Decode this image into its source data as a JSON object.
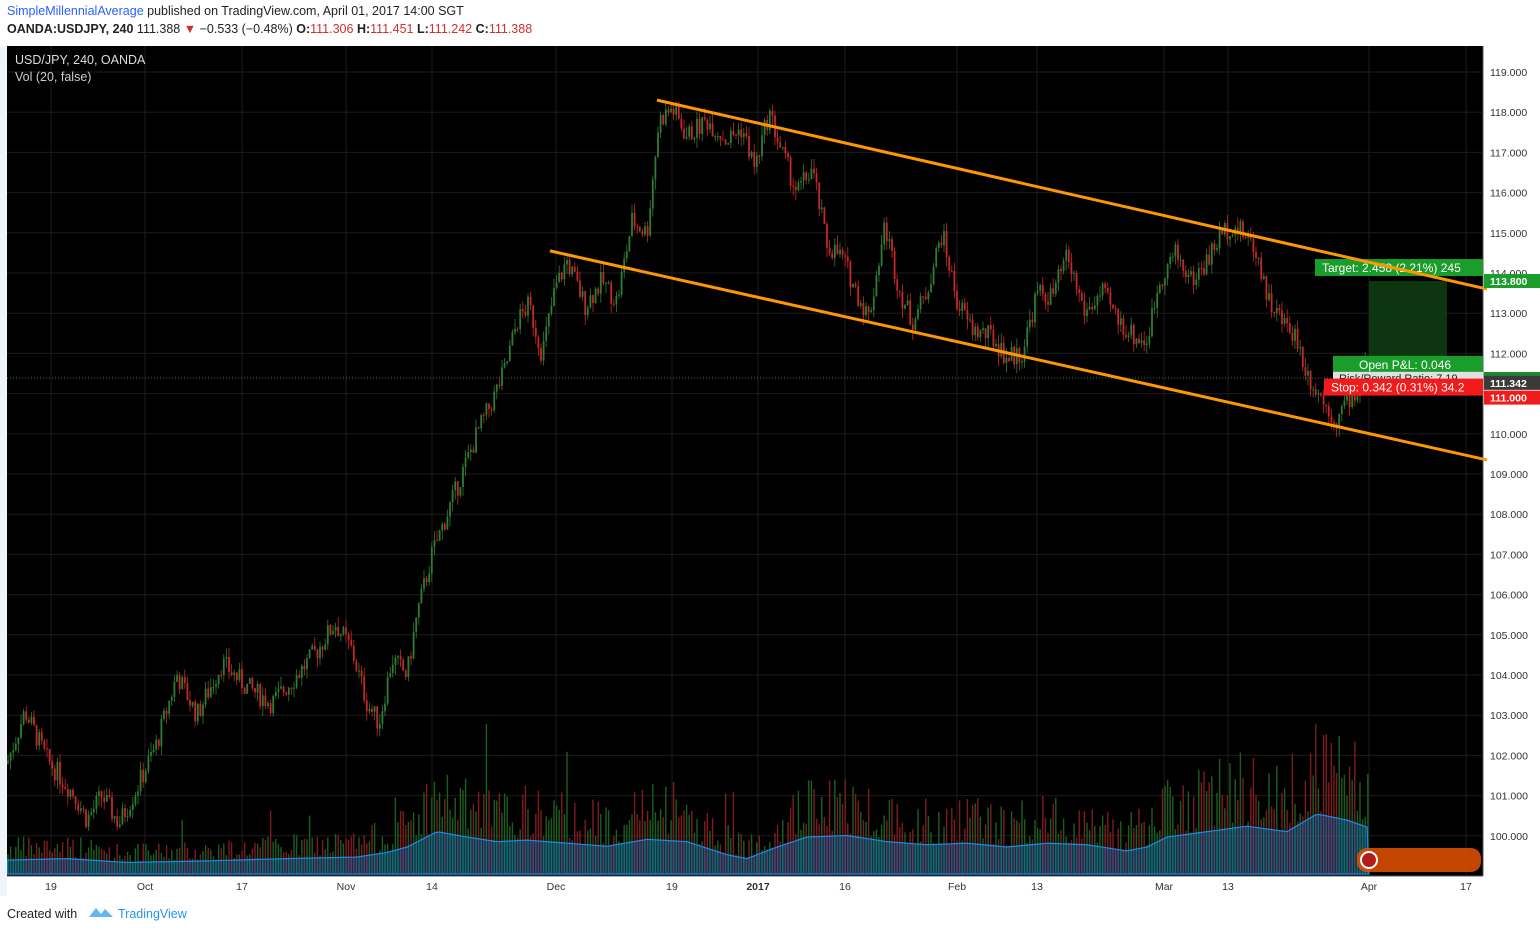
{
  "header": {
    "author": "SimpleMillennialAverage",
    "published": "published on TradingView.com, April 01, 2017 14:00 SGT",
    "symbol": "OANDA:USDJPY, 240",
    "last": "111.388",
    "change": "−0.533 (−0.48%)",
    "o_label": "O:",
    "o_val": "111.306",
    "h_label": "H:",
    "h_val": "111.451",
    "l_label": "L:",
    "l_val": "111.242",
    "c_label": "C:",
    "c_val": "111.388"
  },
  "legend": {
    "title": "USD/JPY, 240, OANDA",
    "vol": "Vol (20, false)"
  },
  "position": {
    "target": "Target: 2.458 (2.21%) 245",
    "open_pl": "Open P&L: 0.046",
    "risk_reward": "Risk/Reward Ratio: 7.19",
    "stop": "Stop: 0.342 (0.31%) 34.2"
  },
  "price_tags": [
    "113.800",
    "111.388",
    "111.342",
    "111.000"
  ],
  "footer": {
    "created": "Created with",
    "brand": "TradingView"
  },
  "colors": {
    "up": "#2e7d32",
    "down": "#c62828",
    "channel": "#ff9800",
    "volume_ma": "#1e88e5",
    "target": "#1a9e2b",
    "stop": "#f21b1b"
  },
  "chart_data": {
    "type": "candlestick",
    "timeframe": "240",
    "x_ticks": [
      "19",
      "Oct",
      "17",
      "Nov",
      "14",
      "Dec",
      "19",
      "2017",
      "16",
      "Feb",
      "13",
      "Mar",
      "13",
      "Apr",
      "17"
    ],
    "y_ticks": [
      "100.000",
      "101.000",
      "102.000",
      "103.000",
      "104.000",
      "105.000",
      "106.000",
      "107.000",
      "108.000",
      "109.000",
      "110.000",
      "111.000",
      "112.000",
      "113.000",
      "114.000",
      "115.000",
      "116.000",
      "117.000",
      "118.000",
      "119.000"
    ],
    "ylim": [
      99.5,
      119.4
    ],
    "close_path": [
      {
        "x": 0,
        "y": 101.8
      },
      {
        "x": 18,
        "y": 103.1
      },
      {
        "x": 40,
        "y": 101.9
      },
      {
        "x": 68,
        "y": 101.0
      },
      {
        "x": 80,
        "y": 100.4
      },
      {
        "x": 95,
        "y": 101.0
      },
      {
        "x": 112,
        "y": 100.3
      },
      {
        "x": 130,
        "y": 101.2
      },
      {
        "x": 150,
        "y": 102.3
      },
      {
        "x": 170,
        "y": 104.0
      },
      {
        "x": 190,
        "y": 103.0
      },
      {
        "x": 215,
        "y": 104.3
      },
      {
        "x": 240,
        "y": 103.7
      },
      {
        "x": 265,
        "y": 103.3
      },
      {
        "x": 290,
        "y": 104.0
      },
      {
        "x": 310,
        "y": 104.6
      },
      {
        "x": 328,
        "y": 105.3
      },
      {
        "x": 345,
        "y": 104.6
      },
      {
        "x": 360,
        "y": 103.3
      },
      {
        "x": 372,
        "y": 102.8
      },
      {
        "x": 385,
        "y": 104.4
      },
      {
        "x": 400,
        "y": 104.0
      },
      {
        "x": 410,
        "y": 105.5
      },
      {
        "x": 425,
        "y": 107.0
      },
      {
        "x": 440,
        "y": 108.0
      },
      {
        "x": 455,
        "y": 109.0
      },
      {
        "x": 470,
        "y": 110.0
      },
      {
        "x": 485,
        "y": 110.8
      },
      {
        "x": 498,
        "y": 111.6
      },
      {
        "x": 510,
        "y": 112.8
      },
      {
        "x": 522,
        "y": 113.2
      },
      {
        "x": 535,
        "y": 112.0
      },
      {
        "x": 548,
        "y": 113.6
      },
      {
        "x": 560,
        "y": 114.3
      },
      {
        "x": 578,
        "y": 113.2
      },
      {
        "x": 595,
        "y": 113.8
      },
      {
        "x": 610,
        "y": 113.3
      },
      {
        "x": 625,
        "y": 115.3
      },
      {
        "x": 640,
        "y": 115.0
      },
      {
        "x": 652,
        "y": 117.8
      },
      {
        "x": 665,
        "y": 118.1
      },
      {
        "x": 680,
        "y": 117.4
      },
      {
        "x": 700,
        "y": 117.8
      },
      {
        "x": 720,
        "y": 117.3
      },
      {
        "x": 735,
        "y": 117.6
      },
      {
        "x": 748,
        "y": 116.6
      },
      {
        "x": 762,
        "y": 118.0
      },
      {
        "x": 775,
        "y": 117.0
      },
      {
        "x": 790,
        "y": 116.0
      },
      {
        "x": 805,
        "y": 116.6
      },
      {
        "x": 820,
        "y": 114.7
      },
      {
        "x": 835,
        "y": 114.4
      },
      {
        "x": 850,
        "y": 113.5
      },
      {
        "x": 862,
        "y": 112.9
      },
      {
        "x": 878,
        "y": 115.2
      },
      {
        "x": 892,
        "y": 113.6
      },
      {
        "x": 905,
        "y": 112.8
      },
      {
        "x": 918,
        "y": 113.4
      },
      {
        "x": 935,
        "y": 115.0
      },
      {
        "x": 950,
        "y": 113.3
      },
      {
        "x": 965,
        "y": 112.6
      },
      {
        "x": 985,
        "y": 112.4
      },
      {
        "x": 1000,
        "y": 111.9
      },
      {
        "x": 1015,
        "y": 112.0
      },
      {
        "x": 1030,
        "y": 113.5
      },
      {
        "x": 1045,
        "y": 113.4
      },
      {
        "x": 1060,
        "y": 114.4
      },
      {
        "x": 1078,
        "y": 113.0
      },
      {
        "x": 1095,
        "y": 113.5
      },
      {
        "x": 1112,
        "y": 112.8
      },
      {
        "x": 1128,
        "y": 112.4
      },
      {
        "x": 1140,
        "y": 112.3
      },
      {
        "x": 1152,
        "y": 113.8
      },
      {
        "x": 1168,
        "y": 114.5
      },
      {
        "x": 1185,
        "y": 113.8
      },
      {
        "x": 1200,
        "y": 114.3
      },
      {
        "x": 1215,
        "y": 115.0
      },
      {
        "x": 1225,
        "y": 115.2
      },
      {
        "x": 1240,
        "y": 114.9
      },
      {
        "x": 1250,
        "y": 114.5
      },
      {
        "x": 1262,
        "y": 113.3
      },
      {
        "x": 1275,
        "y": 112.8
      },
      {
        "x": 1288,
        "y": 112.5
      },
      {
        "x": 1300,
        "y": 111.5
      },
      {
        "x": 1312,
        "y": 111.0
      },
      {
        "x": 1322,
        "y": 110.6
      },
      {
        "x": 1330,
        "y": 110.3
      },
      {
        "x": 1340,
        "y": 110.9
      },
      {
        "x": 1350,
        "y": 111.0
      },
      {
        "x": 1360,
        "y": 111.9
      },
      {
        "x": 1362,
        "y": 111.4
      }
    ],
    "volume_ma_path": [
      {
        "x": 0,
        "y": 0.18
      },
      {
        "x": 60,
        "y": 0.2
      },
      {
        "x": 120,
        "y": 0.15
      },
      {
        "x": 200,
        "y": 0.17
      },
      {
        "x": 280,
        "y": 0.2
      },
      {
        "x": 350,
        "y": 0.22
      },
      {
        "x": 380,
        "y": 0.28
      },
      {
        "x": 400,
        "y": 0.35
      },
      {
        "x": 430,
        "y": 0.55
      },
      {
        "x": 460,
        "y": 0.48
      },
      {
        "x": 490,
        "y": 0.42
      },
      {
        "x": 520,
        "y": 0.44
      },
      {
        "x": 560,
        "y": 0.4
      },
      {
        "x": 600,
        "y": 0.36
      },
      {
        "x": 640,
        "y": 0.45
      },
      {
        "x": 680,
        "y": 0.42
      },
      {
        "x": 720,
        "y": 0.25
      },
      {
        "x": 740,
        "y": 0.2
      },
      {
        "x": 770,
        "y": 0.35
      },
      {
        "x": 800,
        "y": 0.48
      },
      {
        "x": 840,
        "y": 0.5
      },
      {
        "x": 880,
        "y": 0.42
      },
      {
        "x": 920,
        "y": 0.38
      },
      {
        "x": 960,
        "y": 0.4
      },
      {
        "x": 1000,
        "y": 0.35
      },
      {
        "x": 1040,
        "y": 0.4
      },
      {
        "x": 1080,
        "y": 0.38
      },
      {
        "x": 1120,
        "y": 0.3
      },
      {
        "x": 1140,
        "y": 0.35
      },
      {
        "x": 1160,
        "y": 0.48
      },
      {
        "x": 1200,
        "y": 0.55
      },
      {
        "x": 1240,
        "y": 0.62
      },
      {
        "x": 1280,
        "y": 0.55
      },
      {
        "x": 1310,
        "y": 0.78
      },
      {
        "x": 1340,
        "y": 0.7
      },
      {
        "x": 1362,
        "y": 0.6
      }
    ],
    "channel": {
      "upper": [
        {
          "x": 650,
          "y": 118.3
        },
        {
          "x": 1480,
          "y": 113.6
        }
      ],
      "lower": [
        {
          "x": 543,
          "y": 114.55
        },
        {
          "x": 1480,
          "y": 109.35
        }
      ]
    },
    "position_tool": {
      "entry": 111.342,
      "target": 113.8,
      "stop": 111.0,
      "current": 111.388
    }
  }
}
